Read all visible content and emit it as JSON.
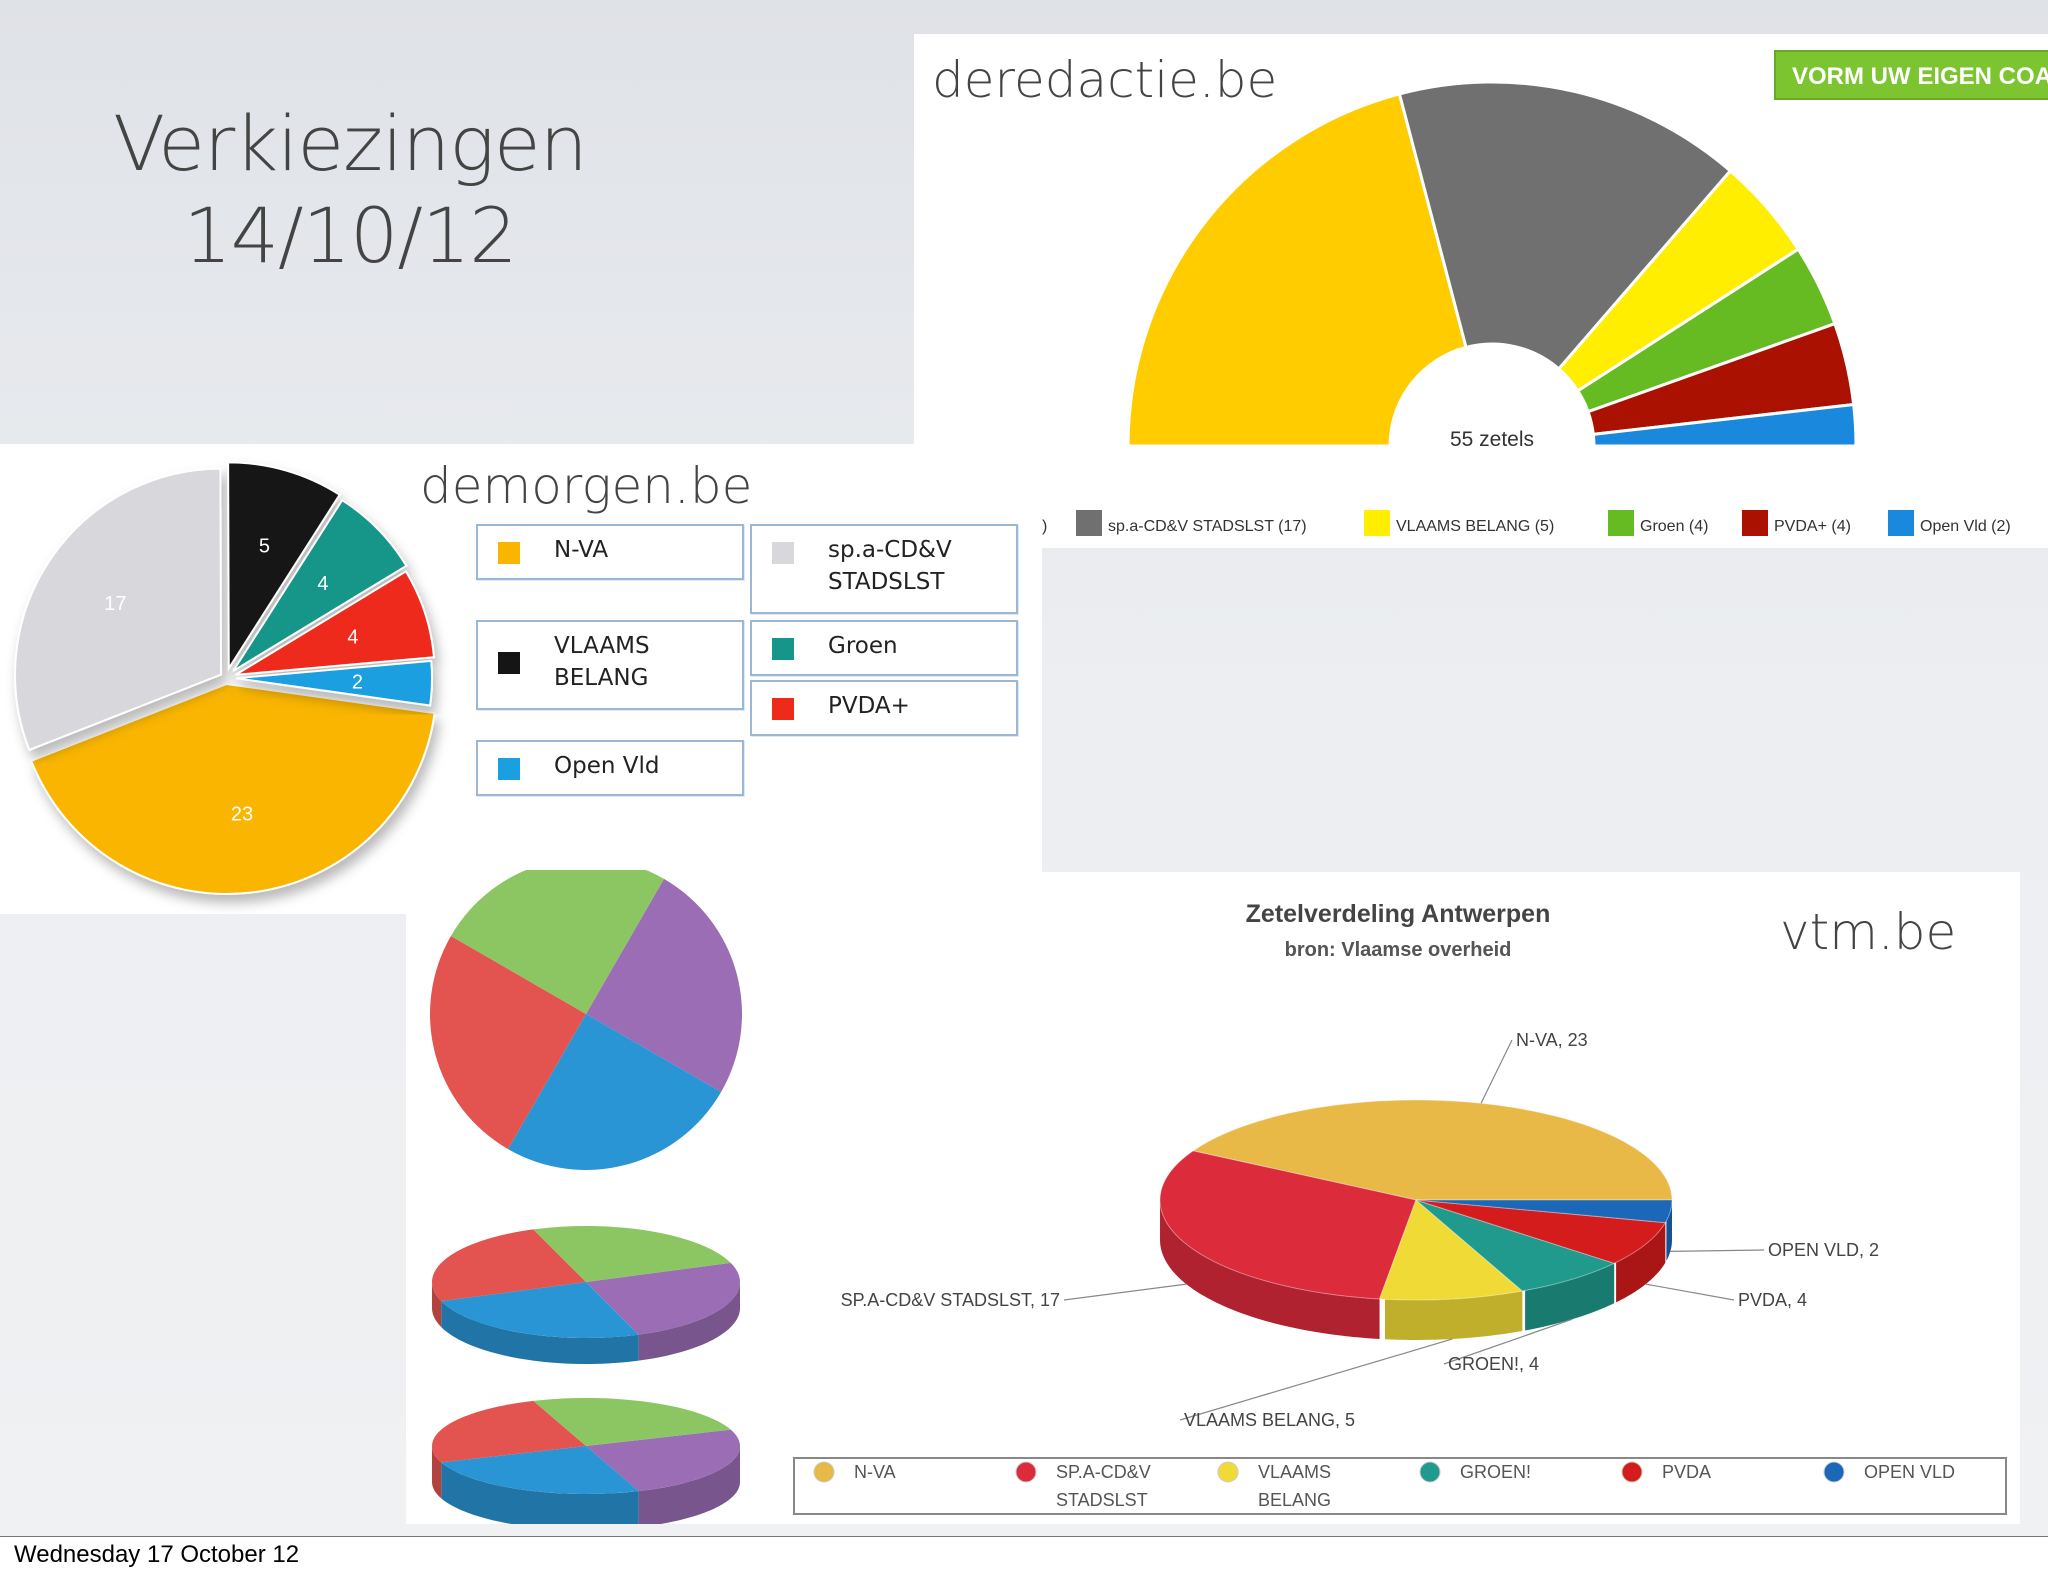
{
  "title_line1": "Verkiezingen",
  "title_line2": "14/10/12",
  "footer": "Wednesday 17 October 12",
  "chart_data": [
    {
      "type": "pie",
      "variant": "half-donut",
      "source_label": "deredactie.be",
      "button_label": "VORM UW EIGEN COA",
      "center_label": "55 zetels",
      "categories": [
        "N-VA",
        "sp.a-CD&V STADSLST",
        "VLAAMS BELANG",
        "Groen",
        "PVDA+",
        "Open Vld"
      ],
      "values": [
        23,
        17,
        5,
        4,
        4,
        2
      ],
      "colors": [
        "#ffcc00",
        "#707070",
        "#ffee00",
        "#66bb22",
        "#aa1100",
        "#1a88dd"
      ],
      "legend": [
        {
          "label": ")",
          "color": ""
        },
        {
          "label": "sp.a-CD&V STADSLST (17)",
          "color": "#707070"
        },
        {
          "label": "VLAAMS BELANG (5)",
          "color": "#ffee00"
        },
        {
          "label": "Groen (4)",
          "color": "#66bb22"
        },
        {
          "label": "PVDA+ (4)",
          "color": "#aa1100"
        },
        {
          "label": "Open Vld (2)",
          "color": "#1a88dd"
        }
      ]
    },
    {
      "type": "pie",
      "source_label": "demorgen.be",
      "categories": [
        "N-VA",
        "sp.a-CD&V STADSLST",
        "VLAAMS BELANG",
        "Groen",
        "PVDA+",
        "Open Vld"
      ],
      "values": [
        23,
        17,
        5,
        4,
        4,
        2
      ],
      "value_labels": [
        "23",
        "17",
        "5",
        "4",
        "4",
        "2"
      ],
      "colors": [
        "#f9b500",
        "#d8d8dc",
        "#151515",
        "#159688",
        "#ee2b1b",
        "#1a9fe0"
      ],
      "legend": [
        {
          "lines": [
            "N-VA"
          ],
          "color": "#f9b500"
        },
        {
          "lines": [
            "sp.a-CD&V",
            "STADSLST"
          ],
          "color": "#d8d8dc"
        },
        {
          "lines": [
            "VLAAMS",
            "BELANG"
          ],
          "color": "#151515"
        },
        {
          "lines": [
            "Groen"
          ],
          "color": "#159688"
        },
        {
          "lines": [
            "Open Vld"
          ],
          "color": "#1a9fe0"
        },
        {
          "lines": [
            "PVDA+"
          ],
          "color": "#ee2b1b"
        }
      ]
    },
    {
      "type": "pie",
      "variant": "3d-examples",
      "categories": [
        "",
        "",
        "",
        ""
      ],
      "values": [
        25,
        25,
        25,
        25
      ],
      "colors": [
        "#9a6db5",
        "#2a95d5",
        "#e35450",
        "#8cc662"
      ]
    },
    {
      "type": "pie",
      "variant": "3d",
      "source_label": "vtm.be",
      "title": "Zetelverdeling Antwerpen",
      "subtitle": "bron: Vlaamse overheid",
      "categories": [
        "N-VA",
        "SP.A-CD&V STADSLST",
        "VLAAMS BELANG",
        "GROEN!",
        "PVDA",
        "OPEN VLD"
      ],
      "values": [
        23,
        17,
        5,
        4,
        4,
        2
      ],
      "value_labels": [
        "N-VA, 23",
        "SP.A-CD&V STADSLST, 17",
        "VLAAMS BELANG, 5",
        "GROEN!, 4",
        "PVDA, 4",
        "OPEN VLD, 2"
      ],
      "colors": [
        "#e9b948",
        "#dc2b3b",
        "#f0db36",
        "#1f9a8c",
        "#d51c1c",
        "#1b67b8"
      ],
      "legend": [
        {
          "lines": [
            "N-VA"
          ],
          "color": "#e9b948"
        },
        {
          "lines": [
            "SP.A-CD&V",
            "STADSLST"
          ],
          "color": "#dc2b3b"
        },
        {
          "lines": [
            "VLAAMS",
            "BELANG"
          ],
          "color": "#f0db36"
        },
        {
          "lines": [
            "GROEN!"
          ],
          "color": "#1f9a8c"
        },
        {
          "lines": [
            "PVDA"
          ],
          "color": "#d51c1c"
        },
        {
          "lines": [
            "OPEN VLD"
          ],
          "color": "#1b67b8"
        }
      ]
    }
  ]
}
